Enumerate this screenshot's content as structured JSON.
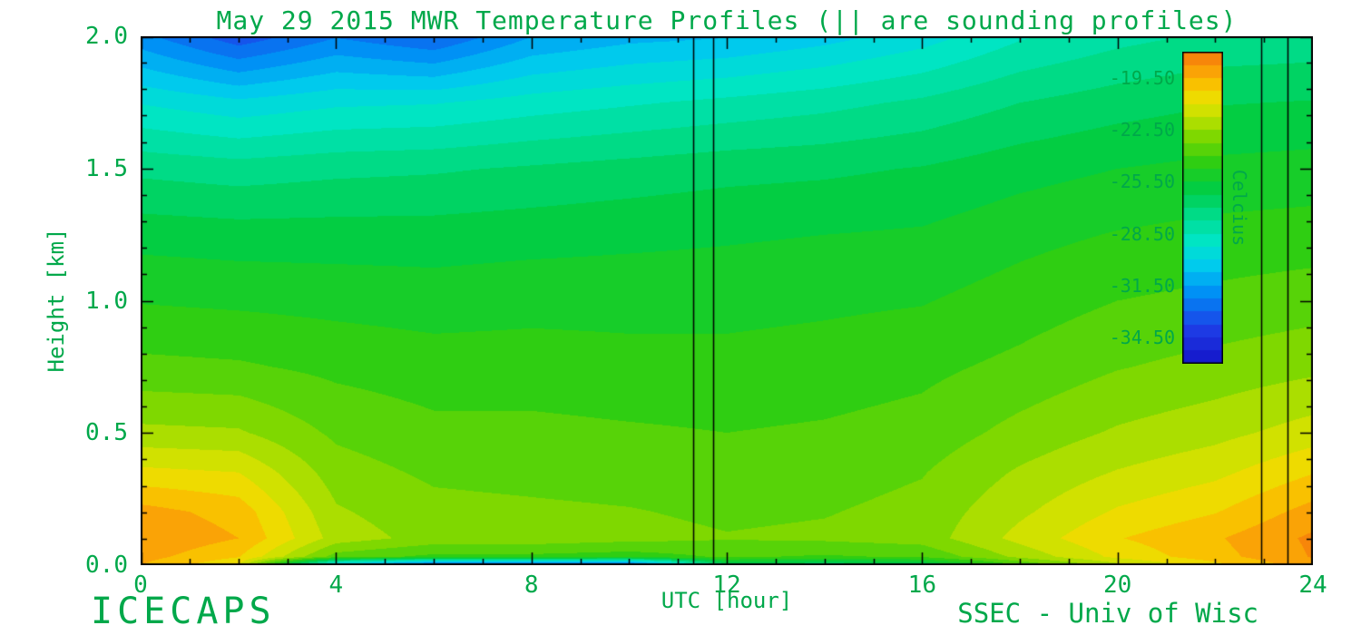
{
  "page": {
    "background": "#ffffff",
    "text_color": "#00a84a",
    "axis_color": "#000000",
    "footer_left": "ICECAPS",
    "footer_right": "SSEC - Univ of Wisc"
  },
  "chart_data": {
    "type": "heatmap",
    "title": "May 29 2015 MWR Temperature Profiles (|| are sounding profiles)",
    "xlabel": "UTC [hour]",
    "ylabel": "Height [km]",
    "xlim": [
      0,
      24
    ],
    "ylim": [
      0.0,
      2.0
    ],
    "xticks_major": [
      0,
      4,
      8,
      12,
      16,
      20,
      24
    ],
    "xtick_minor_step": 1,
    "yticks_major": [
      0.0,
      0.5,
      1.0,
      1.5,
      2.0
    ],
    "ytick_labels": [
      "0.0",
      "0.5",
      "1.0",
      "1.5",
      "2.0"
    ],
    "ytick_minor_step": 0.1,
    "grid": false,
    "band_step_celsius": 0.75,
    "sounding_profile_hours": [
      11.31,
      11.72,
      22.94,
      23.48
    ],
    "x": [
      0,
      2,
      4,
      6,
      8,
      10,
      12,
      14,
      16,
      18,
      20,
      22,
      24
    ],
    "y": [
      0.0,
      0.03,
      0.1,
      0.2,
      0.35,
      0.5,
      0.75,
      1.0,
      1.25,
      1.5,
      1.75,
      2.0
    ],
    "values": [
      [
        -19.5,
        -21.0,
        -31.0,
        -34.0,
        -34.0,
        -34.0,
        -26.5,
        -27.0,
        -26.5,
        -24.0,
        -22.0,
        -20.5,
        -19.0
      ],
      [
        -19.2,
        -20.2,
        -23.6,
        -24.2,
        -24.2,
        -24.4,
        -23.9,
        -24.1,
        -23.9,
        -22.3,
        -20.8,
        -19.8,
        -18.7
      ],
      [
        -18.8,
        -19.5,
        -22.1,
        -22.8,
        -22.8,
        -23.0,
        -23.2,
        -23.1,
        -22.9,
        -21.5,
        -20.3,
        -19.6,
        -18.6
      ],
      [
        -19.2,
        -19.8,
        -22.4,
        -23.0,
        -23.1,
        -23.2,
        -23.4,
        -23.3,
        -23.0,
        -21.9,
        -20.9,
        -20.3,
        -19.2
      ],
      [
        -20.8,
        -21.0,
        -22.9,
        -23.4,
        -23.5,
        -23.6,
        -23.7,
        -23.6,
        -23.3,
        -22.4,
        -21.7,
        -21.2,
        -20.3
      ],
      [
        -22.3,
        -22.4,
        -23.4,
        -23.8,
        -23.8,
        -23.9,
        -24.0,
        -23.9,
        -23.7,
        -23.0,
        -22.4,
        -22.0,
        -21.4
      ],
      [
        -23.8,
        -23.9,
        -24.2,
        -24.4,
        -24.4,
        -24.5,
        -24.5,
        -24.4,
        -24.2,
        -23.8,
        -23.3,
        -23.0,
        -22.7
      ],
      [
        -24.8,
        -24.9,
        -25.0,
        -25.1,
        -25.0,
        -25.0,
        -25.0,
        -24.9,
        -24.8,
        -24.4,
        -24.0,
        -23.8,
        -23.6
      ],
      [
        -25.8,
        -25.9,
        -25.9,
        -25.9,
        -25.8,
        -25.7,
        -25.6,
        -25.5,
        -25.4,
        -25.0,
        -24.7,
        -24.5,
        -24.4
      ],
      [
        -27.2,
        -27.4,
        -27.2,
        -27.1,
        -26.9,
        -26.7,
        -26.5,
        -26.4,
        -26.2,
        -25.8,
        -25.5,
        -25.3,
        -25.2
      ],
      [
        -29.3,
        -29.8,
        -29.4,
        -29.3,
        -28.9,
        -28.6,
        -28.3,
        -28.0,
        -27.6,
        -27.0,
        -26.6,
        -26.3,
        -26.2
      ],
      [
        -32.0,
        -33.5,
        -32.3,
        -33.0,
        -31.5,
        -31.0,
        -30.8,
        -30.3,
        -29.6,
        -28.6,
        -28.0,
        -27.6,
        -27.5
      ]
    ],
    "colorbar": {
      "label": "Celcius",
      "tick_labels": [
        "-19.50",
        "-22.50",
        "-25.50",
        "-28.50",
        "-31.50",
        "-34.50"
      ],
      "tick_values": [
        -19.5,
        -22.5,
        -25.5,
        -28.5,
        -31.5,
        -34.5
      ],
      "top_value": -18.0,
      "bottom_value": -36.0
    },
    "colormap_stops": [
      {
        "t": -36.0,
        "c": "#1414c8"
      },
      {
        "t": -34.0,
        "c": "#1e3ce6"
      },
      {
        "t": -32.0,
        "c": "#008cf5"
      },
      {
        "t": -30.5,
        "c": "#00c8f0"
      },
      {
        "t": -29.0,
        "c": "#00e6c8"
      },
      {
        "t": -27.5,
        "c": "#00dc8c"
      },
      {
        "t": -26.0,
        "c": "#00cd46"
      },
      {
        "t": -24.5,
        "c": "#28cd14"
      },
      {
        "t": -23.0,
        "c": "#78d700"
      },
      {
        "t": -21.8,
        "c": "#bee100"
      },
      {
        "t": -20.8,
        "c": "#ebe100"
      },
      {
        "t": -19.8,
        "c": "#fabe00"
      },
      {
        "t": -18.8,
        "c": "#fa9609"
      },
      {
        "t": -18.0,
        "c": "#f5780a"
      }
    ]
  }
}
